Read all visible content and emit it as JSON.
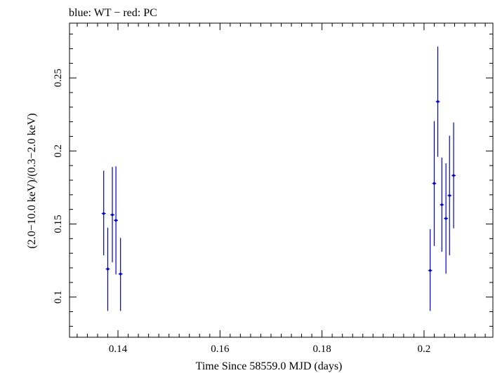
{
  "chart_data": {
    "type": "scatter",
    "title": "blue: WT − red: PC",
    "xlabel": "Time Since 58559.0 MJD (days)",
    "ylabel": "(2.0−10.0 keV)/(0.3−2.0 keV)",
    "xlim": [
      0.1305,
      0.2135
    ],
    "ylim": [
      0.0725,
      0.2875
    ],
    "xticks": [
      {
        "value": 0.14,
        "label": "0.14"
      },
      {
        "value": 0.16,
        "label": "0.16"
      },
      {
        "value": 0.18,
        "label": "0.18"
      },
      {
        "value": 0.2,
        "label": "0.2"
      }
    ],
    "yticks": [
      {
        "value": 0.1,
        "label": "0.1"
      },
      {
        "value": 0.15,
        "label": "0.15"
      },
      {
        "value": 0.2,
        "label": "0.2"
      },
      {
        "value": 0.25,
        "label": "0.25"
      }
    ],
    "grid": false,
    "colors": {
      "wt": "#0000cc",
      "axes": "#000000"
    },
    "series": [
      {
        "points": [
          {
            "x": 0.1372,
            "y": 0.1572,
            "xerr": 0.0004,
            "ylo": 0.1285,
            "yhi": 0.1865
          },
          {
            "x": 0.138,
            "y": 0.1192,
            "xerr": 0.0004,
            "ylo": 0.0905,
            "yhi": 0.1475
          },
          {
            "x": 0.1389,
            "y": 0.1563,
            "xerr": 0.0004,
            "ylo": 0.1238,
            "yhi": 0.189
          },
          {
            "x": 0.1396,
            "y": 0.1525,
            "xerr": 0.0004,
            "ylo": 0.1155,
            "yhi": 0.1895
          },
          {
            "x": 0.1405,
            "y": 0.1158,
            "xerr": 0.0004,
            "ylo": 0.0905,
            "yhi": 0.1405
          },
          {
            "x": 0.2012,
            "y": 0.1182,
            "xerr": 0.0004,
            "ylo": 0.0905,
            "yhi": 0.1465
          },
          {
            "x": 0.202,
            "y": 0.1778,
            "xerr": 0.0004,
            "ylo": 0.135,
            "yhi": 0.2205
          },
          {
            "x": 0.2027,
            "y": 0.2338,
            "xerr": 0.0004,
            "ylo": 0.196,
            "yhi": 0.2715
          },
          {
            "x": 0.2035,
            "y": 0.1632,
            "xerr": 0.0004,
            "ylo": 0.131,
            "yhi": 0.1955
          },
          {
            "x": 0.2043,
            "y": 0.1538,
            "xerr": 0.0004,
            "ylo": 0.116,
            "yhi": 0.1915
          },
          {
            "x": 0.205,
            "y": 0.1695,
            "xerr": 0.0004,
            "ylo": 0.1285,
            "yhi": 0.2105
          },
          {
            "x": 0.2058,
            "y": 0.1832,
            "xerr": 0.0004,
            "ylo": 0.147,
            "yhi": 0.2195
          }
        ]
      }
    ]
  }
}
